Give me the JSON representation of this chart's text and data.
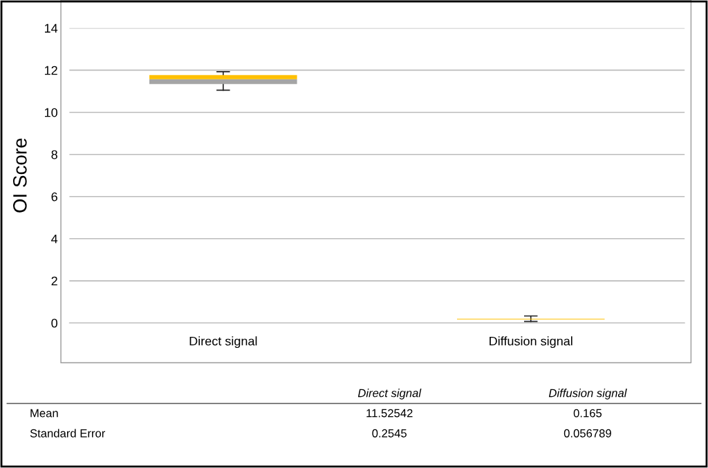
{
  "chart_data": {
    "type": "box",
    "ylabel": "OI Score",
    "categories": [
      "Direct signal",
      "Diffusion signal"
    ],
    "boxes": [
      {
        "low": 11.05,
        "q1": 11.34,
        "median": 11.57,
        "q3": 11.77,
        "high": 11.93
      },
      {
        "low": 0.07,
        "q1": 0.17,
        "median": 0.17,
        "q3": 0.2,
        "high": 0.33
      }
    ],
    "colors": [
      "#a5a5a5",
      "#ffc000"
    ],
    "ylim": [
      0,
      14
    ],
    "yticks": [
      0,
      2,
      4,
      6,
      8,
      10,
      12,
      14
    ],
    "grid": "y",
    "annotations": [
      "Direct signal",
      "Diffusion signal",
      "Mean",
      "11.52542",
      "0.165",
      "Standard Error",
      "0.2545",
      "0.056789"
    ]
  }
}
